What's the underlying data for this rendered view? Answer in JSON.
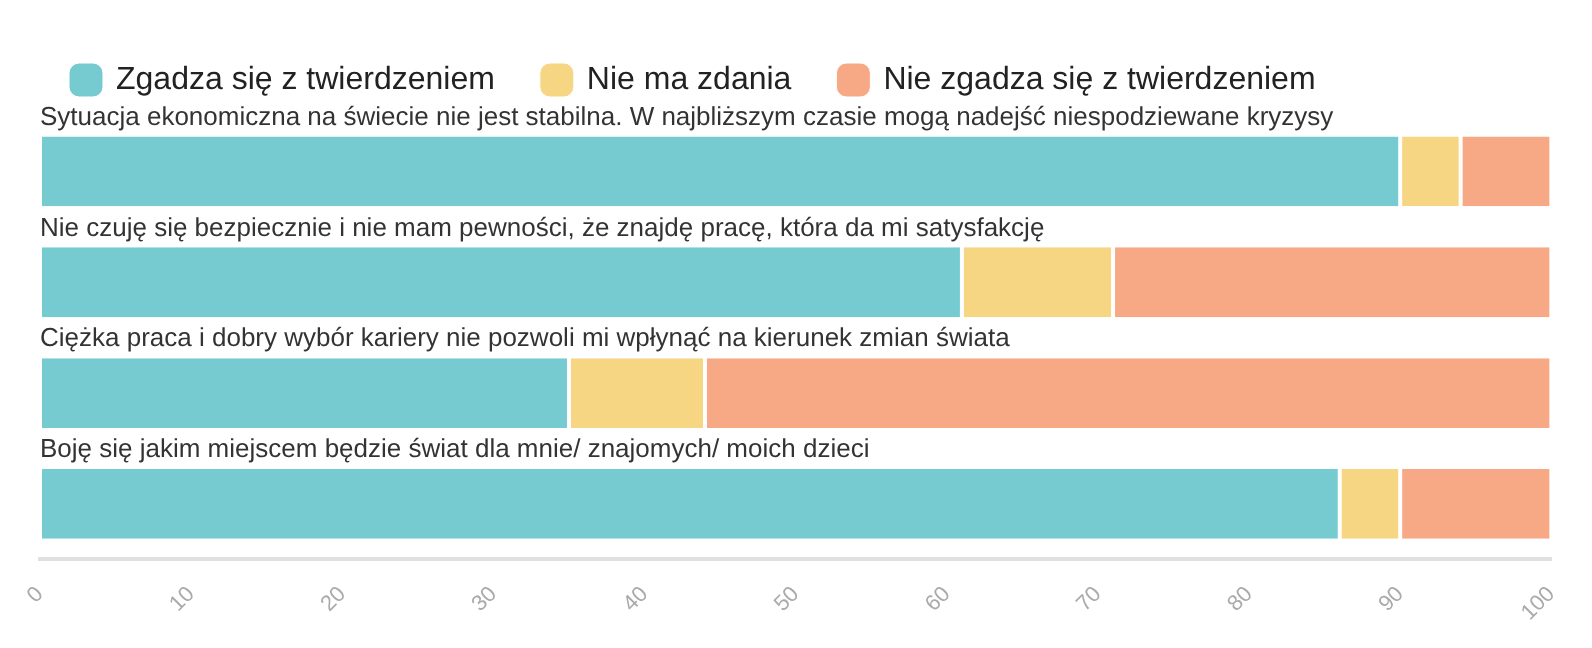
{
  "chart_data": {
    "type": "bar",
    "orientation": "horizontal",
    "stacked": true,
    "categories": [
      "Sytuacja ekonomiczna na świecie nie jest stabilna. W najbliższym czasie mogą nadejść niespodziewane kryzysy",
      "Nie czuję się bezpiecznie i nie mam pewności, że znajdę pracę, która da mi satysfakcję",
      "Ciężka praca i dobry wybór kariery nie pozwoli mi wpłynąć na kierunek zmian świata",
      "Boję się jakim miejscem będzie świat dla mnie/ znajomych/ moich dzieci"
    ],
    "series": [
      {
        "name": "Zgadza się z twierdzeniem",
        "color": "#76cbd1",
        "values": [
          90,
          61,
          35,
          86
        ]
      },
      {
        "name": "Nie ma zdania",
        "color": "#f6d583",
        "values": [
          4,
          10,
          9,
          4
        ]
      },
      {
        "name": "Nie zgadza się z twierdzeniem",
        "color": "#f7a885",
        "values": [
          6,
          29,
          56,
          10
        ]
      }
    ],
    "xlim": [
      0,
      100
    ],
    "xticks": [
      0,
      10,
      20,
      30,
      40,
      50,
      60,
      70,
      80,
      90,
      100
    ],
    "grid": false,
    "legend": "top left",
    "tick_labels": "x"
  }
}
